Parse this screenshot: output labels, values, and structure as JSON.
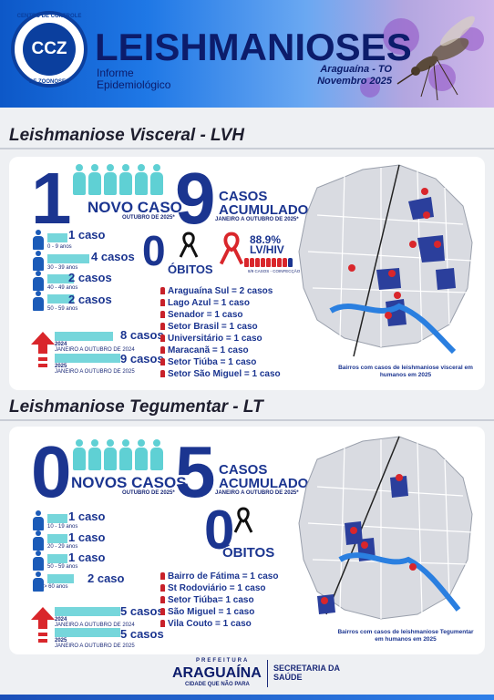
{
  "header": {
    "logo_text": "CCZ",
    "logo_ring_top": "CENTRO DE CONTROLE",
    "logo_ring_bottom": "DE ZOONOSES",
    "title": "LEISHMANIOSES",
    "subtitle_line1": "Informe",
    "subtitle_line2": "Epidemiológico",
    "place": "Araguaína - TO",
    "date": "Novembro 2025"
  },
  "lvh": {
    "section_title": "Leishmaniose Visceral - LVH",
    "new_cases_number": "1",
    "new_cases_label": "NOVO CASO",
    "new_cases_period": "OUTUBRO DE 2025*",
    "accum_number": "9",
    "accum_label1": "CASOS",
    "accum_label2": "ACUMULADOS",
    "accum_period": "JANEIRO A OUTUBRO DE 2025*",
    "age_groups": [
      {
        "value": "1 caso",
        "range": "0 - 9 anos",
        "fill": 0.34
      },
      {
        "value": "4 casos",
        "range": "30 - 39 anos",
        "fill": 0.72
      },
      {
        "value": "2 casos",
        "range": "40 - 49 anos",
        "fill": 0.46
      },
      {
        "value": "2 casos",
        "range": "50 - 59 anos",
        "fill": 0.46
      }
    ],
    "compare": [
      {
        "value": "8 casos",
        "year": "2024",
        "period": "JANEIRO A OUTUBRO DE 2024",
        "fill": 0.82
      },
      {
        "value": "9 casos",
        "year": "2025",
        "period": "JANEIRO A OUTUBRO DE 2025",
        "fill": 0.92
      }
    ],
    "deaths_number": "0",
    "deaths_label": "ÓBITOS",
    "hiv_pct": "88.9%",
    "hiv_label": "LV/HIV",
    "hiv_sub": "8/9 CASOS - COINFECÇÃO",
    "neighborhoods": [
      "Araguaína Sul = 2 casos",
      "Lago Azul = 1 caso",
      "Senador = 1 caso",
      "Setor Brasil = 1 caso",
      "Universitário = 1 caso",
      "Maracanã = 1 caso",
      "Setor Tiúba = 1 caso",
      "Setor São Miguel = 1 caso"
    ],
    "map_caption": "Bairros com casos de leishmaniose visceral em humanos em 2025"
  },
  "lt": {
    "section_title": "Leishmaniose Tegumentar - LT",
    "new_cases_number": "0",
    "new_cases_label": "NOVOS CASOS",
    "new_cases_period": "OUTUBRO DE 2025*",
    "accum_number": "5",
    "accum_label1": "CASOS",
    "accum_label2": "ACUMULADOS",
    "accum_period": "JANEIRO A OUTUBRO DE 2025*",
    "age_groups": [
      {
        "value": "1 caso",
        "range": "10 - 19 anos",
        "fill": 0.34
      },
      {
        "value": "1 caso",
        "range": "20 - 29 anos",
        "fill": 0.34
      },
      {
        "value": "1 caso",
        "range": "50 - 59 anos",
        "fill": 0.34
      },
      {
        "value": "2 caso",
        "range": "> 60 anos",
        "fill": 0.46
      }
    ],
    "compare": [
      {
        "value": "5 casos",
        "year": "2024",
        "period": "JANEIRO A OUTUBRO DE 2024",
        "fill": 0.92
      },
      {
        "value": "5 casos",
        "year": "2025",
        "period": "JANEIRO A OUTUBRO DE 2025",
        "fill": 0.92
      }
    ],
    "deaths_number": "0",
    "deaths_label": "ÓBITOS",
    "neighborhoods": [
      "Bairro de Fátima = 1 caso",
      "St Rodoviário = 1 caso",
      "Setor Tiúba= 1 caso",
      "São Miguel = 1 caso",
      "Vila Couto = 1 caso"
    ],
    "map_caption": "Bairros com casos de leishmaniose Tegumentar em humanos em 2025"
  },
  "footer": {
    "prefeitura": "PREFEITURA",
    "city": "ARAGUAÍNA",
    "slogan": "CIDADE QUE NÃO PARA",
    "secretaria": "SECRETARIA DA SAÚDE"
  },
  "colors": {
    "navy": "#1b3590",
    "teal": "#5fd0d4",
    "red": "#d9262b",
    "map_blue": "#2b3f9c",
    "river": "#2a7fe0"
  }
}
